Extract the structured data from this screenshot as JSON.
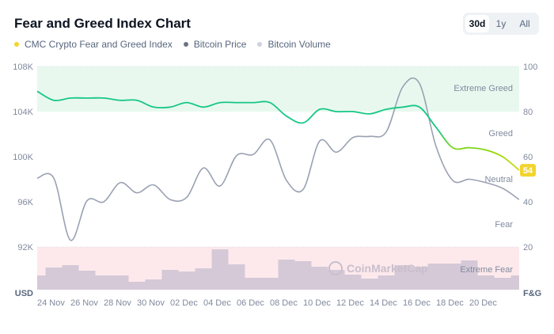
{
  "header": {
    "title": "Fear and Greed Index Chart"
  },
  "tabs": [
    {
      "label": "30d",
      "active": true
    },
    {
      "label": "1y",
      "active": false
    },
    {
      "label": "All",
      "active": false
    }
  ],
  "legend": [
    {
      "label": "CMC Crypto Fear and Greed Index",
      "color": "#f3d42f"
    },
    {
      "label": "Bitcoin Price",
      "color": "#6b7386"
    },
    {
      "label": "Bitcoin Volume",
      "color": "#cdd2de"
    }
  ],
  "colors": {
    "greed_zone": "#e8f8ef",
    "fear_zone": "#fde9ec",
    "price_line": "#9aa1b2",
    "volume_bar": "#d5c9d7",
    "fg_high": "#16c784",
    "fg_mid": "#93d900",
    "fg_low": "#f3d42f"
  },
  "watermark": "CoinMarketCap",
  "chart_data": {
    "type": "line",
    "title": "Fear and Greed Index Chart",
    "left_axis": {
      "label": "USD",
      "ticks": [
        "92K",
        "96K",
        "100K",
        "104K",
        "108K"
      ],
      "range": [
        92,
        108
      ]
    },
    "right_axis": {
      "label": "F&G",
      "ticks": [
        "20",
        "40",
        "60",
        "80",
        "100"
      ],
      "range": [
        0,
        100
      ]
    },
    "zones": [
      {
        "label": "Extreme Greed"
      },
      {
        "label": "Greed"
      },
      {
        "label": "Neutral"
      },
      {
        "label": "Fear"
      },
      {
        "label": "Extreme Fear"
      }
    ],
    "x_tick_labels": [
      "24 Nov",
      "26 Nov",
      "28 Nov",
      "30 Nov",
      "02 Dec",
      "04 Dec",
      "06 Dec",
      "08 Dec",
      "10 Dec",
      "12 Dec",
      "14 Dec",
      "16 Dec",
      "18 Dec",
      "20 Dec"
    ],
    "dates": [
      "24 Nov",
      "25 Nov",
      "26 Nov",
      "27 Nov",
      "28 Nov",
      "29 Nov",
      "30 Nov",
      "01 Dec",
      "02 Dec",
      "03 Dec",
      "04 Dec",
      "05 Dec",
      "06 Dec",
      "07 Dec",
      "08 Dec",
      "09 Dec",
      "10 Dec",
      "11 Dec",
      "12 Dec",
      "13 Dec",
      "14 Dec",
      "15 Dec",
      "16 Dec",
      "17 Dec",
      "18 Dec",
      "19 Dec",
      "20 Dec",
      "21 Dec",
      "22 Dec",
      "23 Dec"
    ],
    "series": [
      {
        "name": "CMC Crypto Fear and Greed Index",
        "axis": "right",
        "values": [
          89,
          85,
          86,
          86,
          86,
          85,
          85,
          82,
          82,
          84,
          82,
          84,
          84,
          84,
          84,
          78,
          75,
          81,
          80,
          80,
          79,
          81,
          82,
          82,
          73,
          64,
          64,
          63,
          60,
          54
        ]
      },
      {
        "name": "Bitcoin Price",
        "axis": "left",
        "unit": "K USD",
        "values": [
          98.1,
          98.1,
          92.6,
          96.1,
          96.0,
          97.7,
          96.8,
          97.5,
          96.2,
          96.4,
          99.0,
          97.4,
          100.1,
          100.2,
          101.5,
          97.9,
          97.1,
          101.4,
          100.4,
          101.7,
          101.8,
          102.2,
          106.2,
          106.5,
          100.9,
          97.9,
          98.0,
          97.7,
          97.2,
          96.2
        ]
      },
      {
        "name": "Bitcoin Volume",
        "axis": "none",
        "values": [
          18,
          28,
          31,
          24,
          18,
          18,
          10,
          13,
          25,
          23,
          27,
          51,
          32,
          15,
          15,
          38,
          36,
          29,
          25,
          19,
          14,
          18,
          31,
          29,
          33,
          33,
          37,
          18,
          15,
          18
        ]
      }
    ],
    "last_value_label": "54",
    "grid": false
  }
}
